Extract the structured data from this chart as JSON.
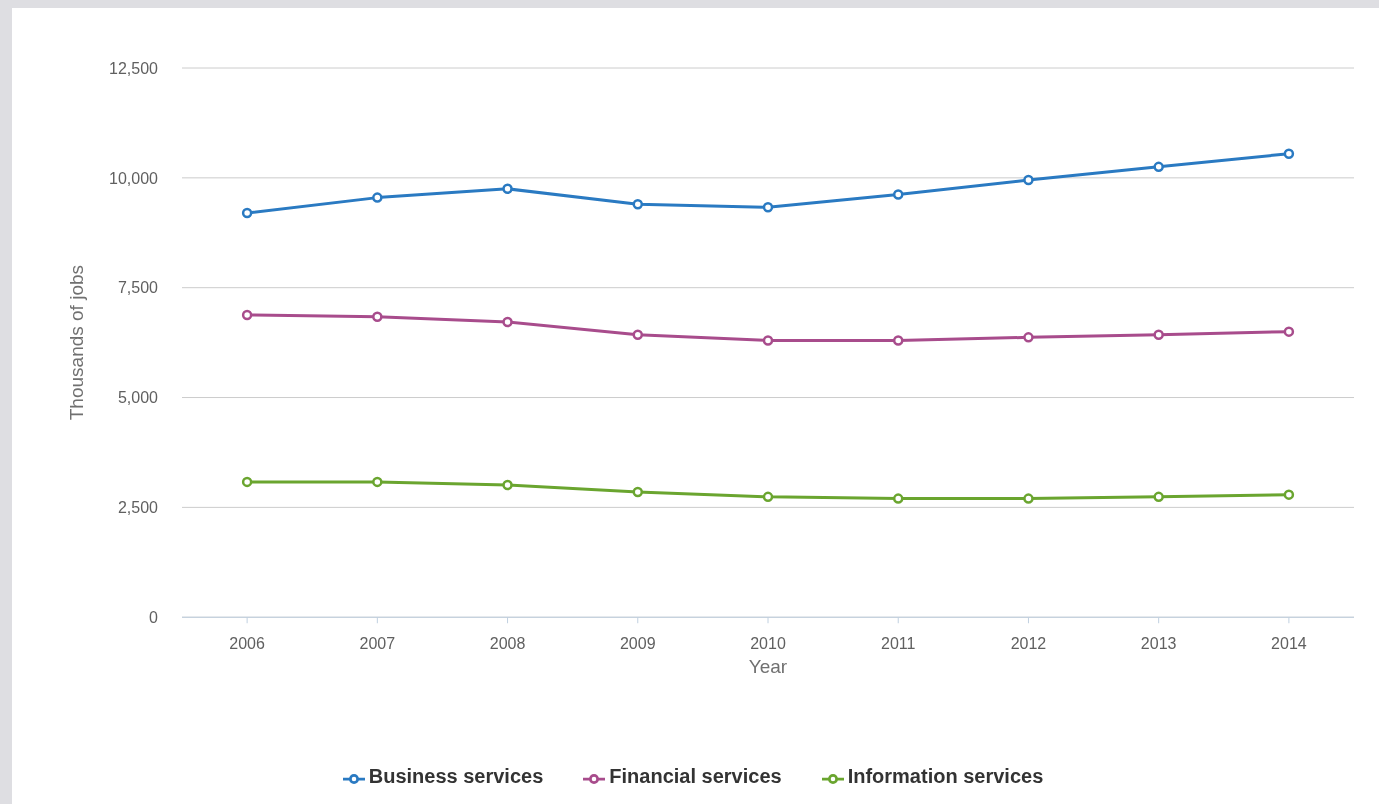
{
  "chart_data": {
    "type": "line",
    "xlabel": "Year",
    "ylabel": "Thousands of jobs",
    "categories": [
      "2006",
      "2007",
      "2008",
      "2009",
      "2010",
      "2011",
      "2012",
      "2013",
      "2014"
    ],
    "series": [
      {
        "name": "Business services",
        "color": "#2a7ac2",
        "values": [
          9200,
          9550,
          9750,
          9400,
          9330,
          9620,
          9950,
          10250,
          10550
        ]
      },
      {
        "name": "Financial services",
        "color": "#a84c8c",
        "values": [
          6880,
          6840,
          6720,
          6430,
          6300,
          6300,
          6370,
          6430,
          6500
        ]
      },
      {
        "name": "Information services",
        "color": "#6aa52f",
        "values": [
          3080,
          3080,
          3010,
          2850,
          2740,
          2700,
          2700,
          2740,
          2790
        ]
      }
    ],
    "ylim": [
      0,
      12500
    ],
    "yticks": [
      0,
      {
        "value": 2500,
        "label": "2,500"
      },
      {
        "value": 5000,
        "label": "5,000"
      },
      {
        "value": 7500,
        "label": "7,500"
      },
      {
        "value": 10000,
        "label": "10,000"
      },
      {
        "value": 12500,
        "label": "12,500"
      }
    ],
    "grid": "y",
    "legend": "bottom",
    "marker": "circle",
    "line_style": "solid"
  }
}
